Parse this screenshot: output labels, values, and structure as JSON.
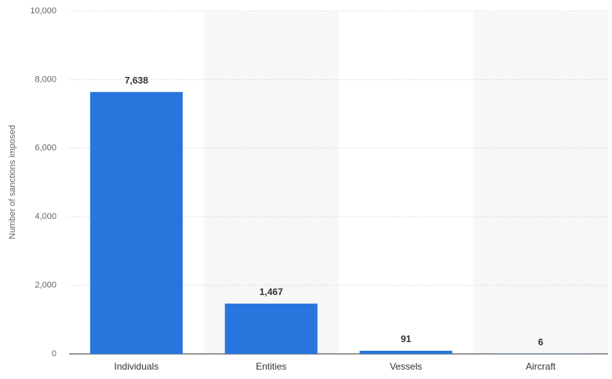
{
  "chart_data": {
    "type": "bar",
    "y_label": "Number of sanctions imposed",
    "categories": [
      "Individuals",
      "Entities",
      "Vessels",
      "Aircraft"
    ],
    "values": [
      7638,
      1467,
      91,
      6
    ],
    "value_labels": [
      "7,638",
      "1,467",
      "91",
      "6"
    ],
    "color": "#2876dd",
    "ylim": [
      0,
      10000
    ],
    "yticks": [
      0,
      {
        "value": 2000,
        "label": "2,000"
      },
      {
        "value": 4000,
        "label": "4,000"
      },
      {
        "value": 6000,
        "label": "6,000"
      },
      {
        "value": 8000,
        "label": "8,000"
      },
      {
        "value": 10000,
        "label": "10,000"
      }
    ],
    "grid": true
  }
}
